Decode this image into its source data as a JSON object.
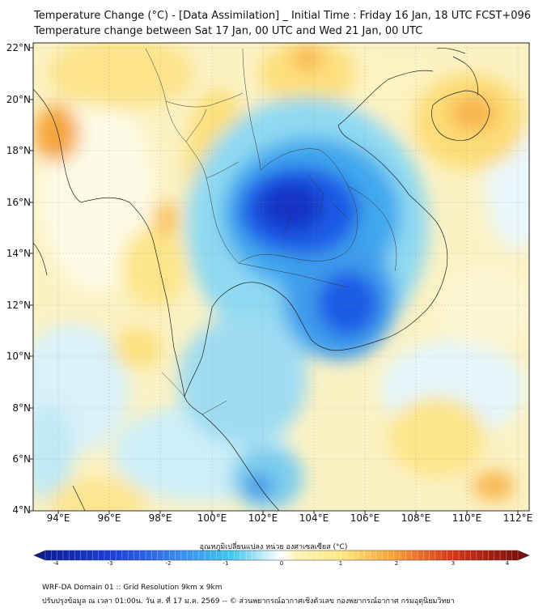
{
  "header": {
    "title_line1": "Temperature Change (°C) - [Data Assimilation] _ Initial Time : Friday 16 Jan, 18 UTC FCST+096",
    "title_line2": "Temperature change between Sat 17 Jan, 00 UTC and Wed 21 Jan, 00 UTC"
  },
  "map": {
    "lat_labels": [
      "22°N",
      "20°N",
      "18°N",
      "16°N",
      "14°N",
      "12°N",
      "10°N",
      "8°N",
      "6°N",
      "4°N"
    ],
    "lon_labels": [
      "94°E",
      "96°E",
      "98°E",
      "100°E",
      "102°E",
      "104°E",
      "106°E",
      "108°E",
      "110°E",
      "112°E"
    ]
  },
  "colorbar": {
    "label": "อุณหภูมิเปลี่ยนแปลง หน่วย องศาเซลเซียส (°C)",
    "ticks": [
      "-4",
      "-3",
      "-2",
      "-1",
      "0",
      "1",
      "2",
      "3",
      "4"
    ],
    "colors": {
      "min": "#0a1a8c",
      "cold": "#1f5ef0",
      "cool": "#41c8ee",
      "pale": "#d8f2fa",
      "neutral": "#ffffff",
      "warm": "#fde883",
      "orange": "#f7a73a",
      "hot": "#d93a1a",
      "max": "#6e0a0a"
    }
  },
  "footer": {
    "line1": "WRF-DA Domain 01 :: Grid Resolution 9km x 9km",
    "line2": "ปรับปรุงข้อมูล ณ เวลา 01:00น. วัน ส. ที่ 17 ม.ค. 2569 -- © ส่วนพยากรณ์อากาศเชิงตัวเลข กองพยากรณ์อากาศ กรมอุตุนิยมวิทยา"
  }
}
